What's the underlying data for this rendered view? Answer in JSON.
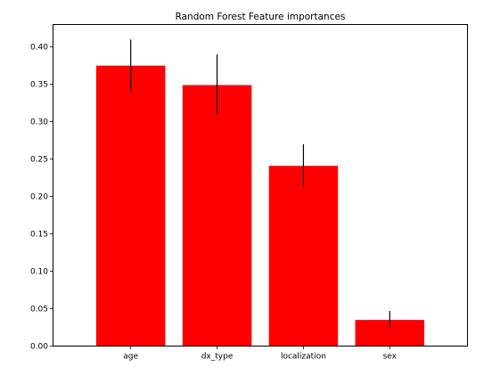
{
  "chart_data": {
    "type": "bar",
    "title": "Random Forest Feature importances",
    "xlabel": "",
    "ylabel": "",
    "categories": [
      "age",
      "dx_type",
      "localization",
      "sex"
    ],
    "values": [
      0.375,
      0.349,
      0.241,
      0.035
    ],
    "error_low": [
      0.34,
      0.309,
      0.213,
      0.024
    ],
    "error_high": [
      0.41,
      0.39,
      0.27,
      0.047
    ],
    "ylim": [
      0,
      0.43
    ],
    "yticks": [
      0.0,
      0.05,
      0.1,
      0.15,
      0.2,
      0.25,
      0.3,
      0.35,
      0.4
    ],
    "ytick_labels": [
      "0.00",
      "0.05",
      "0.10",
      "0.15",
      "0.20",
      "0.25",
      "0.30",
      "0.35",
      "0.40"
    ],
    "bar_color": "#ff0000",
    "error_color": "#000000",
    "grid": false,
    "legend": false
  }
}
